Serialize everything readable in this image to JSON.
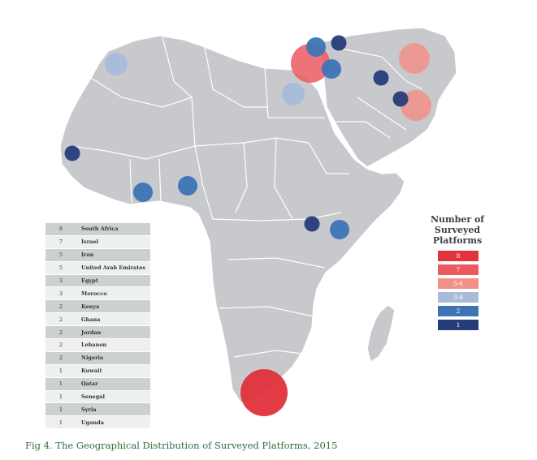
{
  "caption": "Fig 4. The Geographical Distribution of Surveyed Platforms, 2015",
  "table": {
    "rows": [
      {
        "count": "8",
        "country": "South Africa"
      },
      {
        "count": "7",
        "country": "Israel"
      },
      {
        "count": "5",
        "country": "Iran"
      },
      {
        "count": "5",
        "country": "United Arab Emirates"
      },
      {
        "count": "3",
        "country": "Egypt"
      },
      {
        "count": "3",
        "country": "Morocco"
      },
      {
        "count": "2",
        "country": "Kenya"
      },
      {
        "count": "2",
        "country": "Ghana"
      },
      {
        "count": "2",
        "country": "Jordan"
      },
      {
        "count": "2",
        "country": "Lebanon"
      },
      {
        "count": "2",
        "country": "Nigeria"
      },
      {
        "count": "1",
        "country": "Kuwait"
      },
      {
        "count": "1",
        "country": "Qatar"
      },
      {
        "count": "1",
        "country": "Senegal"
      },
      {
        "count": "1",
        "country": "Syria"
      },
      {
        "count": "1",
        "country": "Uganda"
      }
    ]
  },
  "legend": {
    "title": "Number of Surveyed Platforms",
    "items": [
      {
        "label": "8",
        "color": "#e0333b"
      },
      {
        "label": "7",
        "color": "#ea5a60"
      },
      {
        "label": "5-6",
        "color": "#f2918a"
      },
      {
        "label": "3-4",
        "color": "#a8bcd9"
      },
      {
        "label": "2",
        "color": "#3e74b5"
      },
      {
        "label": "1",
        "color": "#273d7a"
      }
    ]
  },
  "map": {
    "land_color": "#c8c9cc",
    "markers": [
      {
        "country": "South Africa",
        "value": 8
      },
      {
        "country": "Israel",
        "value": 7
      },
      {
        "country": "Iran",
        "value": 5
      },
      {
        "country": "United Arab Emirates",
        "value": 5
      },
      {
        "country": "Egypt",
        "value": 3
      },
      {
        "country": "Morocco",
        "value": 3
      },
      {
        "country": "Kenya",
        "value": 2
      },
      {
        "country": "Ghana",
        "value": 2
      },
      {
        "country": "Jordan",
        "value": 2
      },
      {
        "country": "Lebanon",
        "value": 2
      },
      {
        "country": "Nigeria",
        "value": 2
      },
      {
        "country": "Kuwait",
        "value": 1
      },
      {
        "country": "Qatar",
        "value": 1
      },
      {
        "country": "Senegal",
        "value": 1
      },
      {
        "country": "Syria",
        "value": 1
      },
      {
        "country": "Uganda",
        "value": 1
      }
    ]
  }
}
